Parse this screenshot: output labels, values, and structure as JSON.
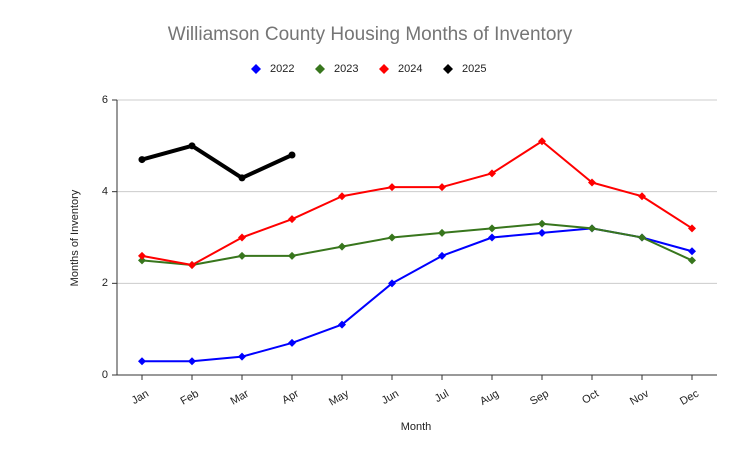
{
  "chart_data": {
    "type": "line",
    "title": "Williamson County Housing Months of Inventory",
    "x_label": "Month",
    "y_label": "Months of Inventory",
    "categories": [
      "Jan",
      "Feb",
      "Mar",
      "Apr",
      "May",
      "Jun",
      "Jul",
      "Aug",
      "Sep",
      "Oct",
      "Nov",
      "Dec"
    ],
    "series": [
      {
        "name": "2022",
        "color": "#0000ff",
        "values": [
          0.3,
          0.3,
          0.4,
          0.7,
          1.1,
          2.0,
          2.6,
          3.0,
          3.1,
          3.2,
          3.0,
          2.7
        ]
      },
      {
        "name": "2023",
        "color": "#38761d",
        "values": [
          2.5,
          2.4,
          2.6,
          2.6,
          2.8,
          3.0,
          3.1,
          3.2,
          3.3,
          3.2,
          3.0,
          2.5
        ]
      },
      {
        "name": "2024",
        "color": "#ff0000",
        "values": [
          2.6,
          2.4,
          3.0,
          3.4,
          3.9,
          4.1,
          4.1,
          4.4,
          5.1,
          4.2,
          3.9,
          3.2
        ]
      },
      {
        "name": "2025",
        "color": "#000000",
        "values": [
          4.7,
          5.0,
          4.3,
          4.8,
          null,
          null,
          null,
          null,
          null,
          null,
          null,
          null
        ]
      }
    ],
    "ylim": [
      0,
      6
    ],
    "yticks": [
      0,
      2,
      4,
      6
    ],
    "grid": true,
    "legend": "top"
  }
}
